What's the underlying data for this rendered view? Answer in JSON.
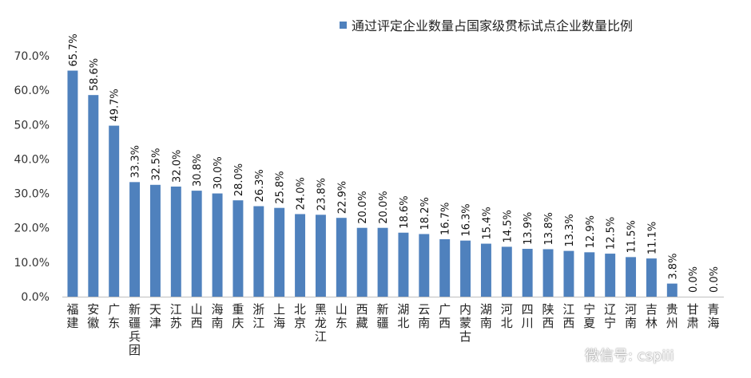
{
  "chart_data": {
    "type": "bar",
    "categories": [
      "福建",
      "安徽",
      "广东",
      "新疆兵团",
      "天津",
      "江苏",
      "山西",
      "海南",
      "重庆",
      "浙江",
      "上海",
      "北京",
      "黑龙江",
      "山东",
      "西藏",
      "新疆",
      "湖北",
      "云南",
      "广西",
      "内蒙古",
      "湖南",
      "河北",
      "四川",
      "陕西",
      "江西",
      "宁夏",
      "辽宁",
      "河南",
      "吉林",
      "贵州",
      "甘肃",
      "青海"
    ],
    "series": [
      {
        "name": "通过评定企业数量占国家级贯标试点企业数量比例",
        "values": [
          65.7,
          58.6,
          49.7,
          33.3,
          32.5,
          32.0,
          30.8,
          30.0,
          28.0,
          26.3,
          25.8,
          24.0,
          23.8,
          22.9,
          20.0,
          20.0,
          18.6,
          18.2,
          16.7,
          16.3,
          15.4,
          14.5,
          13.9,
          13.8,
          13.3,
          12.9,
          12.5,
          11.5,
          11.1,
          3.8,
          0.0,
          0.0
        ],
        "color": "#4f81bd"
      }
    ],
    "data_labels": [
      "65.7%",
      "58.6%",
      "49.7%",
      "33.3%",
      "32.5%",
      "32.0%",
      "30.8%",
      "30.0%",
      "28.0%",
      "26.3%",
      "25.8%",
      "24.0%",
      "23.8%",
      "22.9%",
      "20.0%",
      "20.0%",
      "18.6%",
      "18.2%",
      "16.7%",
      "16.3%",
      "15.4%",
      "14.5%",
      "13.9%",
      "13.8%",
      "13.3%",
      "12.9%",
      "12.5%",
      "11.5%",
      "11.1%",
      "3.8%",
      "0.0%",
      "0.0%"
    ],
    "yticks": [
      "0.0%",
      "10.0%",
      "20.0%",
      "30.0%",
      "40.0%",
      "50.0%",
      "60.0%",
      "70.0%"
    ],
    "ylim": [
      0,
      70
    ],
    "title": "",
    "xlabel": "",
    "ylabel": "",
    "grid": false,
    "legend_position": "top-right"
  },
  "watermark": {
    "text": "微信号: cspiii",
    "icon": "wechat-icon"
  }
}
